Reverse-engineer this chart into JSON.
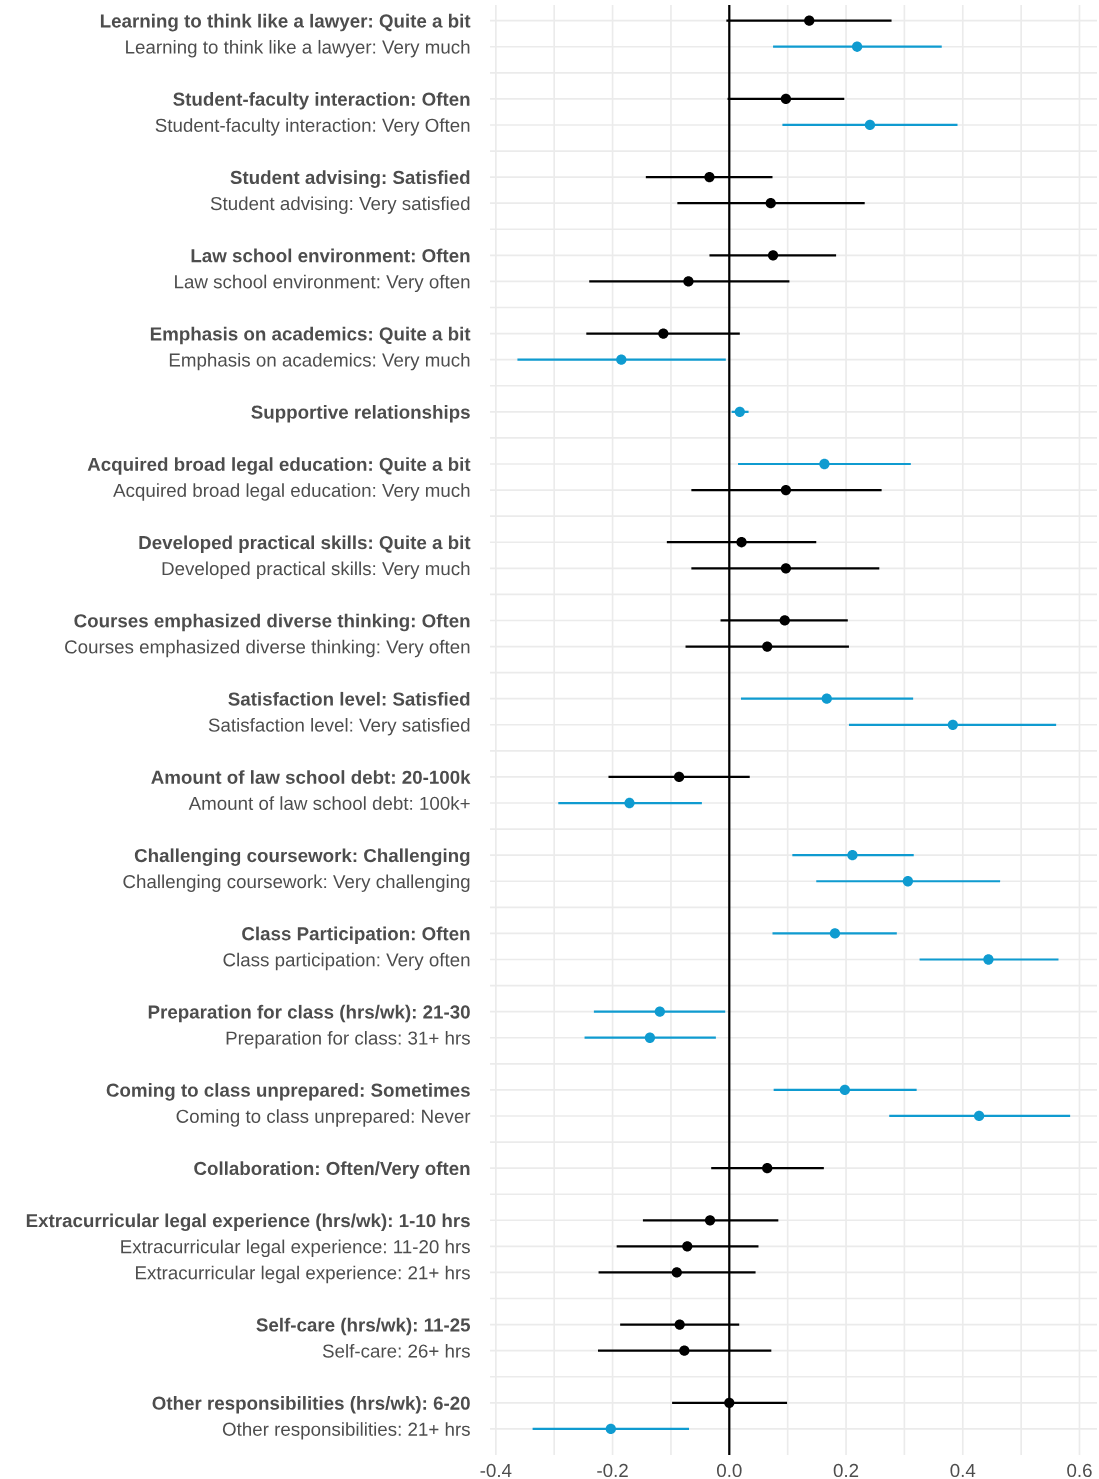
{
  "chart_data": {
    "type": "scatter",
    "orientation": "horizontal",
    "categories": [
      "Learning to think like a lawyer: Quite a bit",
      "Learning to think like a lawyer: Very much",
      null,
      "Student-faculty interaction: Often",
      "Student-faculty interaction: Very Often",
      null,
      "Student advising: Satisfied",
      "Student advising: Very satisfied",
      null,
      "Law school environment: Often",
      "Law school environment: Very often",
      null,
      "Emphasis on academics: Quite a bit",
      "Emphasis on academics: Very much",
      null,
      "Supportive relationships",
      null,
      "Acquired broad legal education: Quite a bit",
      "Acquired broad legal education: Very much",
      null,
      "Developed practical skills: Quite a bit",
      "Developed practical skills: Very much",
      null,
      "Courses emphasized diverse thinking: Often",
      "Courses emphasized diverse thinking: Very often",
      null,
      "Satisfaction level: Satisfied",
      "Satisfaction level: Very satisfied",
      null,
      "Amount of law school debt: 20-100k",
      "Amount of law school debt: 100k+",
      null,
      "Challenging coursework: Challenging",
      "Challenging coursework: Very challenging",
      null,
      "Class Participation: Often",
      "Class participation: Very often",
      null,
      "Preparation for class (hrs/wk): 21-30",
      "Preparation for class: 31+ hrs",
      null,
      "Coming to class unprepared: Sometimes",
      "Coming to class unprepared: Never",
      null,
      "Collaboration: Often/Very often",
      null,
      "Extracurricular legal experience (hrs/wk): 1-10 hrs",
      "Extracurricular legal experience: 11-20 hrs",
      "Extracurricular legal experience: 21+ hrs",
      null,
      "Self-care (hrs/wk): 11-25",
      "Self-care: 26+ hrs",
      null,
      "Other responsibilities (hrs/wk): 6-20",
      "Other responsibilities: 21+ hrs"
    ],
    "values": [
      0.137,
      0.219,
      null,
      0.097,
      0.241,
      null,
      -0.034,
      0.071,
      null,
      0.075,
      -0.07,
      null,
      -0.113,
      -0.185,
      null,
      0.018,
      null,
      0.163,
      0.097,
      null,
      0.021,
      0.097,
      null,
      0.095,
      0.065,
      null,
      0.167,
      0.383,
      null,
      -0.086,
      -0.171,
      null,
      0.211,
      0.306,
      null,
      0.181,
      0.444,
      null,
      -0.119,
      -0.136,
      null,
      0.198,
      0.428,
      null,
      0.065,
      null,
      -0.033,
      -0.072,
      -0.09,
      null,
      -0.085,
      -0.077,
      null,
      0.0,
      -0.203
    ],
    "errors": [
      [
        -0.005,
        0.278
      ],
      [
        0.075,
        0.364
      ],
      null,
      [
        -0.003,
        0.197
      ],
      [
        0.091,
        0.391
      ],
      null,
      [
        -0.143,
        0.074
      ],
      [
        -0.089,
        0.232
      ],
      null,
      [
        -0.034,
        0.183
      ],
      [
        -0.24,
        0.103
      ],
      null,
      [
        -0.245,
        0.018
      ],
      [
        -0.363,
        -0.006
      ],
      null,
      [
        0.004,
        0.033
      ],
      null,
      [
        0.015,
        0.311
      ],
      [
        -0.065,
        0.261
      ],
      null,
      [
        -0.107,
        0.149
      ],
      [
        -0.065,
        0.257
      ],
      null,
      [
        -0.015,
        0.203
      ],
      [
        -0.075,
        0.205
      ],
      null,
      [
        0.02,
        0.315
      ],
      [
        0.205,
        0.56
      ],
      null,
      [
        -0.207,
        0.035
      ],
      [
        -0.293,
        -0.047
      ],
      null,
      [
        0.108,
        0.316
      ],
      [
        0.149,
        0.464
      ],
      null,
      [
        0.074,
        0.287
      ],
      [
        0.326,
        0.564
      ],
      null,
      [
        -0.232,
        -0.007
      ],
      [
        -0.248,
        -0.023
      ],
      null,
      [
        0.076,
        0.321
      ],
      [
        0.274,
        0.584
      ],
      null,
      [
        -0.031,
        0.162
      ],
      null,
      [
        -0.148,
        0.084
      ],
      [
        -0.193,
        0.05
      ],
      [
        -0.224,
        0.045
      ],
      null,
      [
        -0.187,
        0.017
      ],
      [
        -0.225,
        0.072
      ],
      null,
      [
        -0.098,
        0.099
      ],
      [
        -0.337,
        -0.069
      ]
    ],
    "colors": [
      "#000000",
      "#0f9bd0",
      null,
      "#000000",
      "#0f9bd0",
      null,
      "#000000",
      "#000000",
      null,
      "#000000",
      "#000000",
      null,
      "#000000",
      "#0f9bd0",
      null,
      "#0f9bd0",
      null,
      "#0f9bd0",
      "#000000",
      null,
      "#000000",
      "#000000",
      null,
      "#000000",
      "#000000",
      null,
      "#0f9bd0",
      "#0f9bd0",
      null,
      "#000000",
      "#0f9bd0",
      null,
      "#0f9bd0",
      "#0f9bd0",
      null,
      "#0f9bd0",
      "#0f9bd0",
      null,
      "#0f9bd0",
      "#0f9bd0",
      null,
      "#0f9bd0",
      "#0f9bd0",
      null,
      "#000000",
      null,
      "#000000",
      "#000000",
      "#000000",
      null,
      "#000000",
      "#000000",
      null,
      "#000000",
      "#0f9bd0"
    ],
    "xlim": [
      -0.41,
      0.63
    ],
    "xticks": [
      -0.4,
      {
        "value": -0.3,
        "label": null
      },
      -0.2,
      {
        "value": -0.1,
        "label": null
      },
      {
        "value": 0.0,
        "label": "0.0"
      },
      {
        "value": 0.1,
        "label": null
      },
      0.2,
      {
        "value": 0.3,
        "label": null
      },
      0.4,
      {
        "value": 0.5,
        "label": null
      },
      0.6
    ],
    "ref_lines": [
      {
        "axis": "x",
        "value": 0,
        "color": "#000000"
      }
    ],
    "grid": true,
    "marker": "circle",
    "legend": false
  }
}
